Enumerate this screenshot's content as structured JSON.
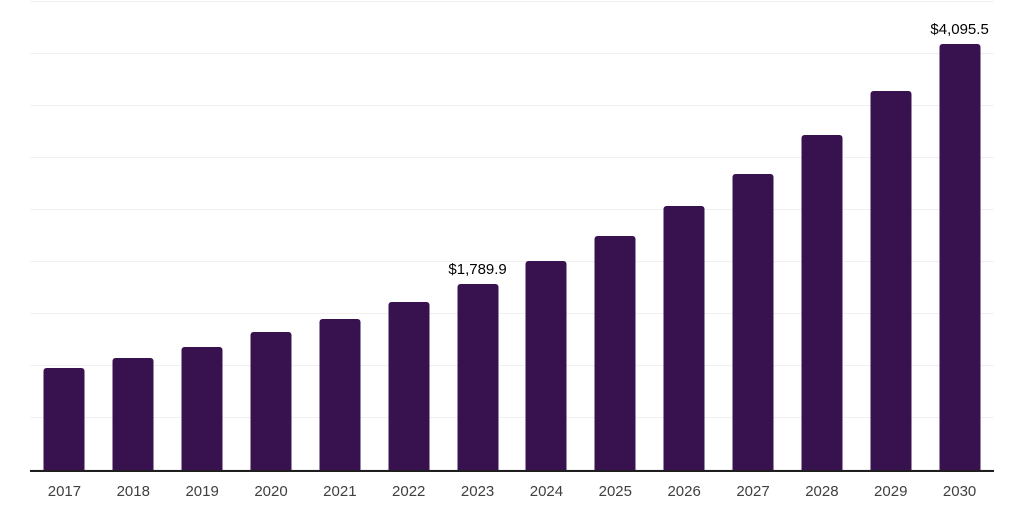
{
  "chart_data": {
    "type": "bar",
    "title": "",
    "xlabel": "",
    "ylabel": "",
    "categories": [
      "2017",
      "2018",
      "2019",
      "2020",
      "2021",
      "2022",
      "2023",
      "2024",
      "2025",
      "2026",
      "2027",
      "2028",
      "2029",
      "2030"
    ],
    "values": [
      980,
      1075,
      1185,
      1325,
      1450,
      1615,
      1789.9,
      2005,
      2250,
      2535,
      2845,
      3220,
      3640,
      4095.5
    ],
    "value_labels": [
      "",
      "",
      "",
      "",
      "",
      "",
      "$1,789.9",
      "",
      "",
      "",
      "",
      "",
      "",
      "$4,095.5"
    ],
    "ylim": [
      0,
      4500
    ],
    "grid_step": 500,
    "grid": "horizontal",
    "y_tick_labels_visible": false,
    "legend_position": "none",
    "bar_color": "#38114f",
    "gridline_color": "#f0f0f0",
    "axis_line_color": "#1f1f1f",
    "value_label_color": "#000000",
    "x_tick_color": "#404040",
    "background_color": "#ffffff"
  }
}
